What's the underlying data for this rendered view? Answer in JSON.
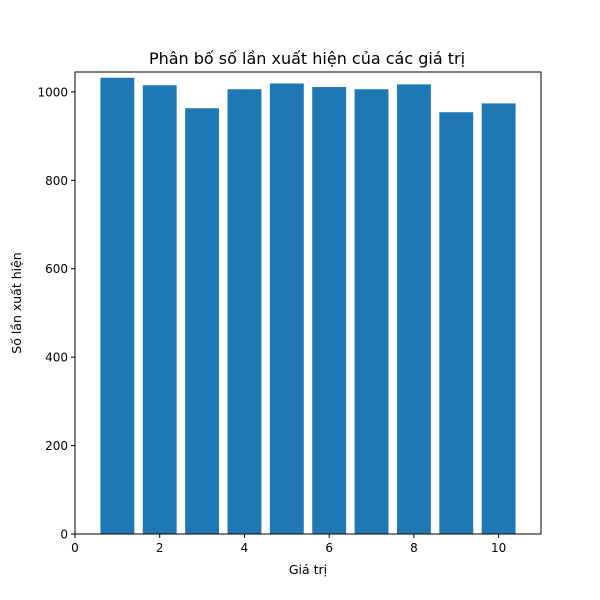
{
  "chart_data": {
    "type": "bar",
    "title": "Phân bố số lần xuất hiện của các giá trị",
    "xlabel": "Giá trị",
    "ylabel": "Số lần xuất hiện",
    "x": [
      1,
      2,
      3,
      4,
      5,
      6,
      7,
      8,
      9,
      10
    ],
    "values": [
      1032,
      1015,
      963,
      1006,
      1019,
      1011,
      1006,
      1017,
      954,
      974
    ],
    "xlim": [
      0,
      11
    ],
    "ylim": [
      0,
      1045
    ],
    "xticks": [
      0,
      2,
      4,
      6,
      8,
      10
    ],
    "yticks": [
      0,
      200,
      400,
      600,
      800,
      1000
    ],
    "xtick_labels": [
      "0",
      "2",
      "4",
      "6",
      "8",
      "10"
    ],
    "ytick_labels": [
      "0",
      "200",
      "400",
      "600",
      "800",
      "1000"
    ],
    "bar_color": "#1f77b4",
    "grid": false,
    "legend": "none"
  }
}
